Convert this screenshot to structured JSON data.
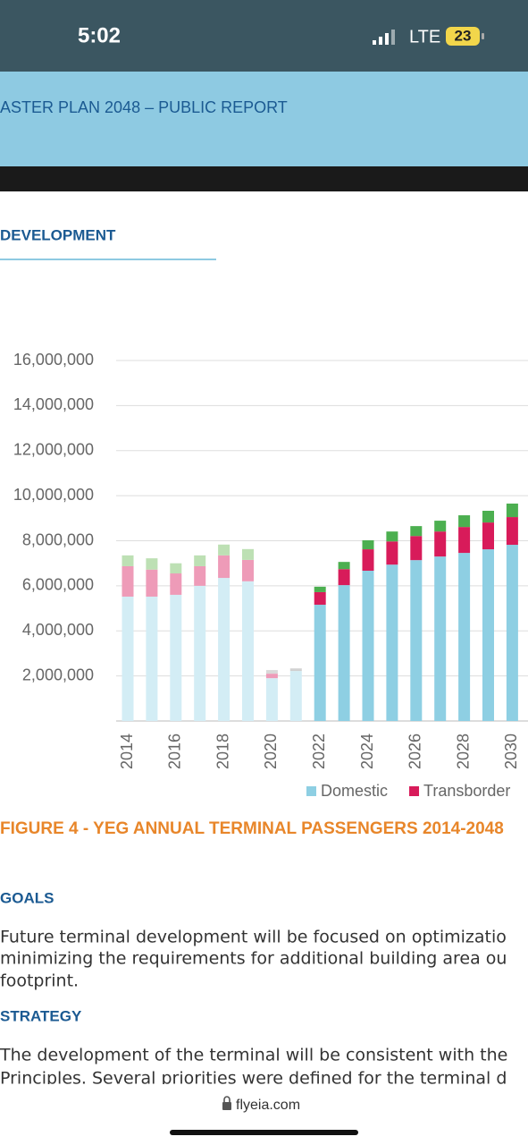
{
  "status_bar": {
    "time": "5:02",
    "network": "LTE",
    "battery": "23"
  },
  "header": {
    "title": "ASTER PLAN 2048 – PUBLIC REPORT"
  },
  "section": "DEVELOPMENT",
  "chart_data": {
    "type": "stacked-bar",
    "categories": [
      "2014",
      null,
      "2016",
      null,
      "2018",
      null,
      "2020",
      null,
      "2022",
      null,
      "2024",
      null,
      "2026",
      null,
      "2028",
      null,
      "2030"
    ],
    "series": [
      {
        "name": "Domestic",
        "color": "#8ecfe3",
        "colors": [
          "#d3edf5",
          "#d3edf5",
          "#d3edf5",
          "#d3edf5",
          "#d3edf5",
          "#d3edf5",
          "#d3edf5",
          "#d3edf5",
          "#8ecfe3",
          "#8ecfe3",
          "#8ecfe3",
          "#8ecfe3",
          "#8ecfe3",
          "#8ecfe3",
          "#8ecfe3",
          "#8ecfe3",
          "#8ecfe3"
        ],
        "values": [
          5520000,
          5520000,
          5600000,
          6000000,
          6350000,
          6200000,
          1900000,
          2220000,
          5160000,
          6030000,
          6670000,
          6940000,
          7140000,
          7300000,
          7460000,
          7620000,
          7820000
        ]
      },
      {
        "name": "Transborder",
        "color": "#d81b5a",
        "colors": [
          "#ee9bb8",
          "#ee9bb8",
          "#ee9bb8",
          "#ee9bb8",
          "#ee9bb8",
          "#ee9bb8",
          "#ee9bb8",
          "#cfcfcf",
          "#d81b5a",
          "#d81b5a",
          "#d81b5a",
          "#d81b5a",
          "#d81b5a",
          "#d81b5a",
          "#d81b5a",
          "#d81b5a",
          "#d81b5a"
        ],
        "values": [
          1350000,
          1200000,
          950000,
          870000,
          1000000,
          950000,
          200000,
          80000,
          560000,
          710000,
          950000,
          1030000,
          1070000,
          1110000,
          1150000,
          1190000,
          1230000
        ]
      },
      {
        "color": "#4caf50",
        "colors": [
          "#bde0b4",
          "#bde0b4",
          "#bde0b4",
          "#bde0b4",
          "#bde0b4",
          "#bde0b4",
          "#d9d9d9",
          "#d9d9d9",
          "#4caf50",
          "#4caf50",
          "#4caf50",
          "#4caf50",
          "#4caf50",
          "#4caf50",
          "#4caf50",
          "#4caf50",
          "#4caf50"
        ],
        "values": [
          480000,
          500000,
          450000,
          480000,
          480000,
          480000,
          160000,
          40000,
          240000,
          320000,
          400000,
          440000,
          440000,
          480000,
          520000,
          520000,
          600000
        ]
      }
    ],
    "ylim": [
      0,
      16000000
    ],
    "yticks": [
      {
        "value": 2000000,
        "label": "2,000,000"
      },
      {
        "value": 4000000,
        "label": "4,000,000"
      },
      {
        "value": 6000000,
        "label": "6,000,000"
      },
      {
        "value": 8000000,
        "label": "8,000,000"
      },
      {
        "value": 10000000,
        "label": "10,000,000"
      },
      {
        "value": 12000000,
        "label": "12,000,000"
      },
      {
        "value": 14000000,
        "label": "14,000,000"
      },
      {
        "value": 16000000,
        "label": "16,000,000"
      }
    ],
    "grid": true
  },
  "caption": "FIGURE 4 - YEG ANNUAL TERMINAL PASSENGERS 2014-2048",
  "goals": {
    "heading": "GOALS",
    "lines": [
      "Future terminal development will be focused on optimizatio",
      "minimizing the requirements for additional building area ou",
      "footprint."
    ]
  },
  "strategy": {
    "heading": "STRATEGY",
    "lines": [
      "The development of the terminal will be consistent with the",
      "Principles. Several priorities were defined for the terminal d"
    ]
  },
  "url": "flyeia.com"
}
